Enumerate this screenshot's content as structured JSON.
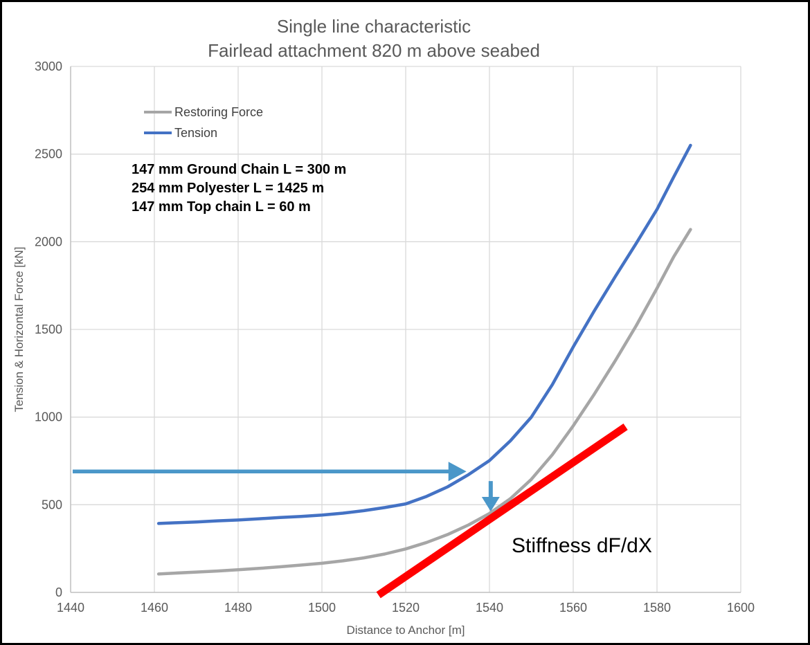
{
  "title": {
    "line1": "Single line characteristic",
    "line2": "Fairlead attachment 820 m above seabed"
  },
  "legend": {
    "items": [
      {
        "label": "Restoring Force",
        "color": "#A6A6A6"
      },
      {
        "label": "Tension",
        "color": "#4472C4"
      }
    ]
  },
  "annotations": {
    "line_spec": [
      "147 mm Ground Chain L = 300 m",
      "254 mm Polyester L = 1425 m",
      "147 mm Top chain L = 60 m"
    ],
    "stiffness_label": "Stiffness dF/dX"
  },
  "colors": {
    "tension_blue": "#4472C4",
    "restoring_gray": "#A6A6A6",
    "arrow_blue": "#4A97C9",
    "stiffness_red": "#FF0000",
    "gridline": "#D9D9D9",
    "axis_line": "#BFBFBF",
    "text_gray": "#595959"
  },
  "chart_data": {
    "type": "line",
    "title": "Single line characteristic — Fairlead attachment 820 m above seabed",
    "xlabel": "Distance to Anchor [m]",
    "ylabel": "Tension & Horizontal Force [kN]",
    "xlim": [
      1440,
      1600
    ],
    "ylim": [
      0,
      3000
    ],
    "x_ticks": [
      1440,
      1460,
      1480,
      1500,
      1520,
      1540,
      1560,
      1580,
      1600
    ],
    "y_ticks": [
      0,
      500,
      1000,
      1500,
      2000,
      2500,
      3000
    ],
    "grid": true,
    "legend_position": "upper-left-inside",
    "series": [
      {
        "name": "Restoring Force",
        "color": "#A6A6A6",
        "points": [
          [
            1461,
            105
          ],
          [
            1465,
            110
          ],
          [
            1470,
            116
          ],
          [
            1475,
            122
          ],
          [
            1480,
            129
          ],
          [
            1485,
            137
          ],
          [
            1490,
            146
          ],
          [
            1495,
            156
          ],
          [
            1500,
            166
          ],
          [
            1505,
            180
          ],
          [
            1510,
            197
          ],
          [
            1515,
            219
          ],
          [
            1520,
            248
          ],
          [
            1525,
            285
          ],
          [
            1530,
            330
          ],
          [
            1535,
            385
          ],
          [
            1540,
            450
          ],
          [
            1545,
            535
          ],
          [
            1550,
            645
          ],
          [
            1555,
            785
          ],
          [
            1560,
            950
          ],
          [
            1565,
            1130
          ],
          [
            1570,
            1320
          ],
          [
            1575,
            1520
          ],
          [
            1580,
            1735
          ],
          [
            1584,
            1915
          ],
          [
            1588,
            2070
          ]
        ]
      },
      {
        "name": "Tension",
        "color": "#4472C4",
        "points": [
          [
            1461,
            393
          ],
          [
            1465,
            397
          ],
          [
            1470,
            402
          ],
          [
            1475,
            408
          ],
          [
            1480,
            413
          ],
          [
            1485,
            420
          ],
          [
            1490,
            427
          ],
          [
            1495,
            433
          ],
          [
            1500,
            441
          ],
          [
            1505,
            452
          ],
          [
            1510,
            466
          ],
          [
            1515,
            484
          ],
          [
            1520,
            505
          ],
          [
            1525,
            548
          ],
          [
            1530,
            602
          ],
          [
            1535,
            672
          ],
          [
            1540,
            752
          ],
          [
            1545,
            865
          ],
          [
            1550,
            1000
          ],
          [
            1555,
            1185
          ],
          [
            1560,
            1400
          ],
          [
            1565,
            1605
          ],
          [
            1570,
            1800
          ],
          [
            1575,
            1990
          ],
          [
            1580,
            2185
          ],
          [
            1584,
            2370
          ],
          [
            1588,
            2550
          ]
        ]
      }
    ],
    "overlays": {
      "stiffness_line": {
        "color": "#FF0000",
        "from": [
          1513.5,
          -15
        ],
        "to": [
          1572.5,
          945
        ]
      },
      "horizontal_arrow": {
        "color": "#4A97C9",
        "y": 690,
        "x_from": 1440.5,
        "x_to": 1534.5
      },
      "vertical_arrow": {
        "color": "#4A97C9",
        "x": 1540.3,
        "y_from": 635,
        "y_to": 462
      }
    }
  }
}
